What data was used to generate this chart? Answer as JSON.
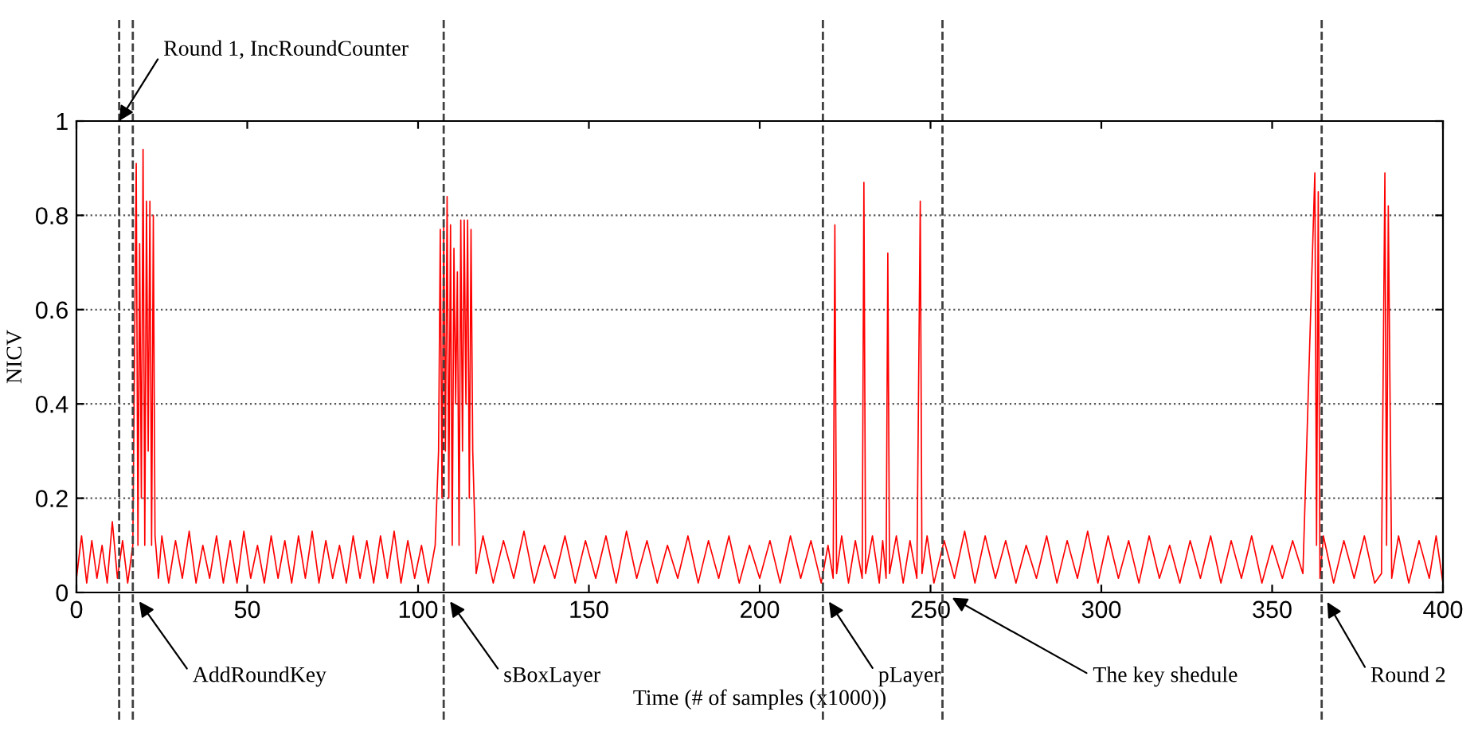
{
  "chart_data": {
    "type": "line",
    "xlabel": "Time (# of samples (x1000))",
    "ylabel": "NICV",
    "xlim": [
      0,
      400
    ],
    "xticks": [
      0,
      50,
      100,
      150,
      200,
      250,
      300,
      350,
      400
    ],
    "ylim": [
      0,
      1
    ],
    "yticks": [
      0,
      0.2,
      0.4,
      0.6,
      0.8,
      1
    ],
    "grid": "y",
    "line_style": "solid",
    "marker": "none",
    "series": [
      {
        "color": "#ff0000",
        "x": [
          0,
          1.5,
          3,
          4.5,
          6,
          7.5,
          9,
          10.5,
          12,
          13.5,
          15,
          16.5,
          17,
          17.5,
          18,
          18.5,
          19,
          19.5,
          20,
          20.5,
          21,
          21.5,
          22,
          22.5,
          23,
          24,
          25,
          27,
          29,
          31,
          33,
          35,
          37,
          39,
          41,
          43,
          45,
          47,
          49,
          51,
          53,
          55,
          57,
          59,
          61,
          63,
          65,
          67,
          69,
          71,
          73,
          75,
          77,
          79,
          81,
          83,
          85,
          87,
          89,
          91,
          93,
          95,
          97,
          99,
          101,
          103,
          105,
          106,
          106.5,
          107,
          107.5,
          108,
          108.5,
          109,
          109.5,
          110,
          110.5,
          111,
          111.5,
          112,
          112.5,
          113,
          113.5,
          114,
          114.5,
          115,
          115.5,
          116,
          117,
          119,
          122,
          125,
          128,
          131,
          134,
          137,
          140,
          143,
          146,
          149,
          152,
          155,
          158,
          161,
          164,
          167,
          170,
          173,
          176,
          179,
          182,
          185,
          188,
          191,
          194,
          197,
          200,
          203,
          206,
          209,
          212,
          215,
          218,
          220,
          221.5,
          222,
          222.5,
          224,
          226,
          228,
          230,
          230.5,
          231,
          233,
          235,
          236,
          237,
          237.5,
          238,
          240,
          242,
          244,
          246,
          247,
          247.5,
          249,
          251,
          254,
          257,
          260,
          263,
          266,
          269,
          272,
          275,
          278,
          281,
          284,
          287,
          290,
          293,
          296,
          299,
          302,
          305,
          308,
          311,
          314,
          317,
          320,
          323,
          326,
          329,
          332,
          335,
          338,
          341,
          344,
          347,
          350,
          353,
          356,
          359,
          362.5,
          363,
          363.5,
          364,
          365,
          368,
          371,
          374,
          377,
          380,
          382,
          383,
          383.5,
          384,
          385,
          387,
          390,
          393,
          396,
          398,
          400
        ],
        "values": [
          0.03,
          0.12,
          0.02,
          0.11,
          0.03,
          0.1,
          0.02,
          0.15,
          0.03,
          0.11,
          0.02,
          0.1,
          0.5,
          0.91,
          0.1,
          0.74,
          0.2,
          0.94,
          0.1,
          0.83,
          0.3,
          0.83,
          0.1,
          0.8,
          0.12,
          0.03,
          0.12,
          0.02,
          0.11,
          0.03,
          0.13,
          0.02,
          0.1,
          0.03,
          0.12,
          0.02,
          0.11,
          0.02,
          0.13,
          0.03,
          0.1,
          0.02,
          0.12,
          0.03,
          0.11,
          0.02,
          0.12,
          0.03,
          0.13,
          0.02,
          0.11,
          0.03,
          0.1,
          0.02,
          0.12,
          0.03,
          0.11,
          0.02,
          0.12,
          0.03,
          0.13,
          0.02,
          0.11,
          0.03,
          0.1,
          0.02,
          0.1,
          0.3,
          0.77,
          0.2,
          0.78,
          0.3,
          0.84,
          0.2,
          0.78,
          0.1,
          0.73,
          0.4,
          0.68,
          0.1,
          0.79,
          0.3,
          0.79,
          0.4,
          0.79,
          0.2,
          0.77,
          0.3,
          0.04,
          0.12,
          0.02,
          0.11,
          0.03,
          0.13,
          0.02,
          0.1,
          0.03,
          0.12,
          0.02,
          0.11,
          0.03,
          0.12,
          0.02,
          0.13,
          0.03,
          0.11,
          0.02,
          0.1,
          0.03,
          0.12,
          0.02,
          0.11,
          0.03,
          0.12,
          0.02,
          0.1,
          0.03,
          0.11,
          0.02,
          0.12,
          0.03,
          0.11,
          0.02,
          0.1,
          0.03,
          0.78,
          0.04,
          0.12,
          0.02,
          0.11,
          0.03,
          0.87,
          0.04,
          0.12,
          0.02,
          0.11,
          0.03,
          0.72,
          0.04,
          0.12,
          0.02,
          0.11,
          0.03,
          0.83,
          0.04,
          0.12,
          0.02,
          0.11,
          0.03,
          0.13,
          0.02,
          0.12,
          0.03,
          0.11,
          0.02,
          0.1,
          0.03,
          0.12,
          0.02,
          0.11,
          0.03,
          0.13,
          0.02,
          0.12,
          0.03,
          0.11,
          0.02,
          0.12,
          0.03,
          0.1,
          0.02,
          0.11,
          0.03,
          0.12,
          0.02,
          0.11,
          0.03,
          0.12,
          0.02,
          0.1,
          0.03,
          0.11,
          0.04,
          0.89,
          0.1,
          0.85,
          0.03,
          0.12,
          0.02,
          0.11,
          0.03,
          0.12,
          0.02,
          0.04,
          0.89,
          0.1,
          0.82,
          0.03,
          0.12,
          0.02,
          0.11,
          0.03,
          0.12,
          0.02
        ]
      }
    ],
    "ref_lines": [
      {
        "axis": "x",
        "value": 12.5,
        "label": "Round 1, IncRoundCounter",
        "line_style": "dashed",
        "color": "#404040"
      },
      {
        "axis": "x",
        "value": 16.5,
        "label": "AddRoundKey",
        "line_style": "dashed",
        "color": "#404040"
      },
      {
        "axis": "x",
        "value": 107.5,
        "label": "sBoxLayer",
        "line_style": "dashed",
        "color": "#404040"
      },
      {
        "axis": "x",
        "value": 218.5,
        "label": "pLayer",
        "line_style": "dashed",
        "color": "#404040"
      },
      {
        "axis": "x",
        "value": 253.5,
        "label": "The key shedule",
        "line_style": "dashed",
        "color": "#404040"
      },
      {
        "axis": "x",
        "value": 364.5,
        "label": "Round 2",
        "line_style": "dashed",
        "color": "#404040"
      }
    ]
  }
}
